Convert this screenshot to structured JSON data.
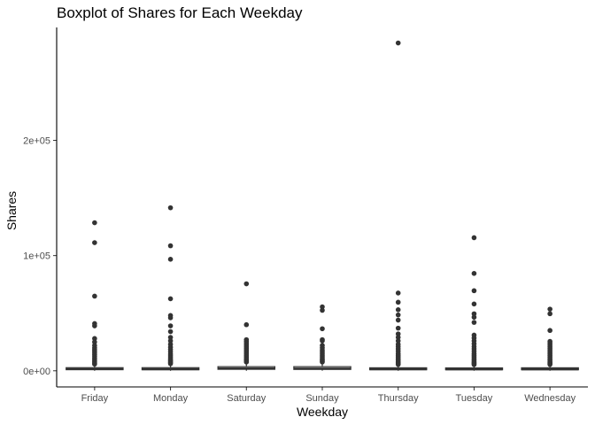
{
  "chart_data": {
    "type": "boxplot",
    "title": "Boxplot of Shares for Each Weekday",
    "xlabel": "Weekday",
    "ylabel": "Shares",
    "categories": [
      "Friday",
      "Monday",
      "Saturday",
      "Sunday",
      "Thursday",
      "Tuesday",
      "Wednesday"
    ],
    "y_ticks": [
      0,
      100000,
      200000
    ],
    "y_tick_labels": [
      "0e+00",
      "1e+05",
      "2e+05"
    ],
    "ylim": [
      -14000,
      298000
    ],
    "grid": false,
    "colors": {
      "points": "#333333",
      "box": "#333333",
      "axis": "#000000"
    },
    "boxes": [
      {
        "category": "Friday",
        "q1": 950,
        "median": 1500,
        "q3": 2700,
        "whisker_low": 22,
        "whisker_high": 5300,
        "outliers": [
          128500,
          111200,
          64800,
          41000,
          39000,
          28000,
          25000,
          22000,
          20000,
          18500,
          17000,
          15500,
          14000,
          12500,
          11000,
          9800,
          8500,
          7500,
          6500,
          5800
        ]
      },
      {
        "category": "Monday",
        "q1": 900,
        "median": 1400,
        "q3": 2700,
        "whisker_low": 1,
        "whisker_high": 5400,
        "outliers": [
          141500,
          108500,
          96800,
          62500,
          48000,
          46000,
          39000,
          34000,
          29000,
          26000,
          23000,
          20500,
          18500,
          16500,
          14500,
          13000,
          11500,
          10000,
          9000,
          8000,
          7000,
          6200
        ]
      },
      {
        "category": "Saturday",
        "q1": 1300,
        "median": 2000,
        "q3": 3600,
        "whisker_low": 43,
        "whisker_high": 7000,
        "outliers": [
          75500,
          40000,
          27000,
          25500,
          24000,
          22500,
          21000,
          19500,
          18000,
          16500,
          15000,
          13500,
          12000,
          10500,
          9500,
          8500,
          7600
        ]
      },
      {
        "category": "Sunday",
        "q1": 1200,
        "median": 1900,
        "q3": 3600,
        "whisker_low": 89,
        "whisker_high": 7000,
        "outliers": [
          55500,
          52500,
          36500,
          27000,
          26000,
          22000,
          20000,
          18000,
          16500,
          15000,
          13500,
          12000,
          10500,
          9500,
          8500,
          7600
        ]
      },
      {
        "category": "Thursday",
        "q1": 900,
        "median": 1400,
        "q3": 2600,
        "whisker_low": 5,
        "whisker_high": 5100,
        "outliers": [
          284500,
          67500,
          59500,
          53000,
          48500,
          44000,
          37000,
          32000,
          29000,
          26000,
          23000,
          21000,
          19000,
          17000,
          15000,
          13500,
          12000,
          10500,
          9200,
          8000,
          7000,
          6200,
          5500
        ]
      },
      {
        "category": "Tuesday",
        "q1": 900,
        "median": 1300,
        "q3": 2500,
        "whisker_low": 42,
        "whisker_high": 4900,
        "outliers": [
          115500,
          84500,
          69500,
          58000,
          49500,
          46500,
          42000,
          31000,
          28500,
          26000,
          23500,
          21000,
          19000,
          17000,
          15000,
          13500,
          12000,
          10500,
          9200,
          8000,
          7000,
          6200,
          5400
        ]
      },
      {
        "category": "Wednesday",
        "q1": 900,
        "median": 1300,
        "q3": 2600,
        "whisker_low": 23,
        "whisker_high": 5000,
        "outliers": [
          53500,
          49500,
          35000,
          25500,
          24000,
          22500,
          21000,
          19500,
          18000,
          16500,
          15000,
          13500,
          12000,
          10500,
          9200,
          8000,
          7000,
          6200,
          5500
        ]
      }
    ]
  }
}
